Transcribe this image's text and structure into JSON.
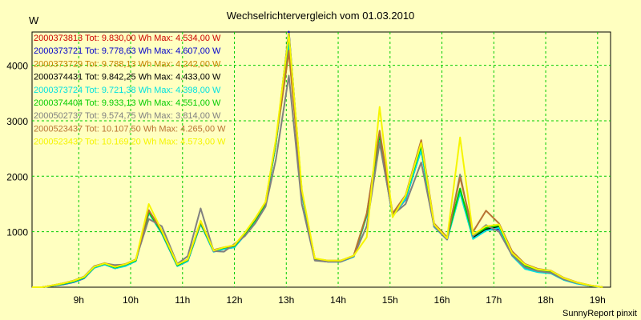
{
  "chart_data": {
    "type": "line",
    "title": "Wechselrichtervergleich vom 01.03.2010",
    "ylabel": "W",
    "footer": "SunnyReport pinxit",
    "x_tick_labels": [
      "9h",
      "10h",
      "11h",
      "12h",
      "13h",
      "14h",
      "15h",
      "16h",
      "17h",
      "18h",
      "19h"
    ],
    "x_ticks": [
      9,
      10,
      11,
      12,
      13,
      14,
      15,
      16,
      17,
      18,
      19
    ],
    "xlim": [
      8.1,
      19.25
    ],
    "ylim": [
      0,
      4600
    ],
    "y_ticks": [
      1000,
      2000,
      3000,
      4000
    ],
    "y_tick_labels": [
      "1000",
      "2000",
      "3000",
      "4000"
    ],
    "grid": true,
    "legend_position": "top-left",
    "x": [
      8.1,
      8.3,
      8.5,
      8.7,
      8.9,
      9.1,
      9.3,
      9.5,
      9.7,
      9.9,
      10.1,
      10.35,
      10.6,
      10.9,
      11.1,
      11.35,
      11.6,
      11.8,
      12.0,
      12.2,
      12.4,
      12.6,
      12.8,
      13.05,
      13.3,
      13.55,
      13.8,
      14.05,
      14.3,
      14.55,
      14.8,
      15.05,
      15.3,
      15.6,
      15.85,
      16.1,
      16.35,
      16.6,
      16.85,
      17.1,
      17.35,
      17.6,
      17.85,
      18.1,
      18.35,
      18.6,
      18.85,
      19.1
    ],
    "series": [
      {
        "name": "2000373813",
        "label": "2000373813 Tot: 9.830,00 Wh Max: 4.534,00 W",
        "color": "#cc0000",
        "values": [
          0,
          0,
          30,
          60,
          100,
          170,
          360,
          420,
          350,
          400,
          480,
          1350,
          980,
          390,
          480,
          1150,
          650,
          700,
          730,
          950,
          1200,
          1500,
          2600,
          4480,
          1700,
          500,
          470,
          470,
          560,
          1300,
          2700,
          1300,
          1600,
          2500,
          1100,
          870,
          1750,
          900,
          1050,
          1100,
          600,
          380,
          300,
          280,
          150,
          80,
          30,
          0
        ]
      },
      {
        "name": "2000373721",
        "label": "2000373721 Tot: 9.778,63 Wh Max: 4.607,00 W",
        "color": "#0000cc",
        "values": [
          0,
          0,
          25,
          50,
          90,
          160,
          350,
          410,
          340,
          390,
          470,
          1340,
          970,
          380,
          470,
          1140,
          640,
          690,
          720,
          940,
          1190,
          1490,
          2590,
          4607,
          1690,
          490,
          460,
          460,
          550,
          1290,
          2650,
          1290,
          1580,
          2480,
          1090,
          860,
          1720,
          880,
          1030,
          1050,
          580,
          340,
          280,
          260,
          140,
          70,
          25,
          0
        ]
      },
      {
        "name": "2000373729",
        "label": "2000373729 Tot: 9.788,13 Wh Max: 4.242,00 W",
        "color": "#c88000",
        "values": [
          0,
          0,
          30,
          60,
          105,
          175,
          360,
          420,
          355,
          405,
          485,
          1350,
          990,
          400,
          490,
          1160,
          660,
          710,
          740,
          960,
          1210,
          1510,
          2610,
          4242,
          1710,
          510,
          475,
          475,
          565,
          1310,
          2780,
          1310,
          1620,
          2520,
          1120,
          880,
          1760,
          910,
          1060,
          1130,
          620,
          400,
          310,
          290,
          160,
          85,
          30,
          0
        ]
      },
      {
        "name": "2000374431",
        "label": "2000374431 Tot: 9.842,25 Wh Max: 4.433,00 W",
        "color": "#000000",
        "values": [
          0,
          0,
          30,
          60,
          100,
          170,
          360,
          420,
          350,
          400,
          480,
          1350,
          980,
          390,
          480,
          1150,
          650,
          700,
          730,
          950,
          1200,
          1500,
          2600,
          4433,
          1700,
          500,
          470,
          470,
          560,
          1300,
          2700,
          1300,
          1600,
          2500,
          1100,
          870,
          1750,
          900,
          1050,
          1080,
          600,
          370,
          300,
          280,
          150,
          80,
          30,
          0
        ]
      },
      {
        "name": "2000373724",
        "label": "2000373724 Tot: 9.721,38 Wh Max: 4.398,00 W",
        "color": "#00e0e0",
        "values": [
          0,
          0,
          25,
          55,
          95,
          165,
          350,
          410,
          340,
          380,
          470,
          1340,
          970,
          380,
          470,
          1140,
          640,
          690,
          720,
          940,
          1190,
          1490,
          2580,
          4398,
          1680,
          490,
          460,
          460,
          550,
          1290,
          2640,
          1290,
          1590,
          2470,
          1090,
          860,
          1700,
          870,
          1020,
          1070,
          570,
          330,
          270,
          250,
          130,
          65,
          25,
          0
        ]
      },
      {
        "name": "2000374404",
        "label": "2000374404 Tot: 9.933,13 Wh Max: 4.551,00 W",
        "color": "#00cc00",
        "values": [
          0,
          0,
          30,
          60,
          105,
          175,
          365,
          425,
          355,
          405,
          485,
          1360,
          990,
          395,
          490,
          1160,
          660,
          710,
          740,
          960,
          1210,
          1510,
          2610,
          4551,
          1720,
          505,
          475,
          475,
          565,
          1310,
          2760,
          1310,
          1640,
          2560,
          1120,
          880,
          1780,
          920,
          1070,
          1110,
          610,
          390,
          310,
          290,
          155,
          85,
          30,
          0
        ]
      },
      {
        "name": "2000502737",
        "label": "2000502737 Tot: 9.574,75 Wh Max: 3.814,00 W",
        "color": "#808080",
        "values": [
          0,
          0,
          30,
          70,
          120,
          190,
          380,
          430,
          400,
          410,
          500,
          1230,
          1100,
          420,
          560,
          1420,
          650,
          640,
          780,
          920,
          1150,
          1450,
          2300,
          3814,
          1500,
          480,
          460,
          460,
          560,
          1100,
          2600,
          1300,
          1500,
          2250,
          1100,
          860,
          2030,
          920,
          1120,
          1000,
          580,
          360,
          290,
          260,
          140,
          75,
          30,
          0
        ]
      },
      {
        "name": "2000523437",
        "label": "2000523437 Tot: 10.107,50 Wh Max: 4.265,00 W",
        "color": "#b87333",
        "values": [
          0,
          0,
          35,
          70,
          115,
          185,
          375,
          435,
          370,
          420,
          500,
          1390,
          1010,
          410,
          500,
          1180,
          670,
          720,
          750,
          980,
          1230,
          1530,
          2640,
          4265,
          1730,
          515,
          480,
          480,
          570,
          1330,
          2820,
          1330,
          1660,
          2650,
          1150,
          900,
          1980,
          1000,
          1380,
          1150,
          650,
          420,
          330,
          300,
          170,
          90,
          35,
          0
        ]
      },
      {
        "name": "200052343?",
        "label": "200052343? Tot: 10.169,20 Wh Max: 4.573,00 W",
        "color": "#f5f500",
        "values": [
          0,
          0,
          35,
          70,
          115,
          185,
          370,
          430,
          365,
          415,
          495,
          1500,
          1020,
          410,
          500,
          1200,
          660,
          720,
          760,
          980,
          1240,
          1540,
          2660,
          4573,
          1760,
          520,
          480,
          480,
          570,
          900,
          3250,
          1260,
          1650,
          2600,
          1130,
          880,
          2700,
          950,
          1100,
          1130,
          620,
          410,
          320,
          295,
          165,
          85,
          35,
          0
        ]
      }
    ]
  }
}
